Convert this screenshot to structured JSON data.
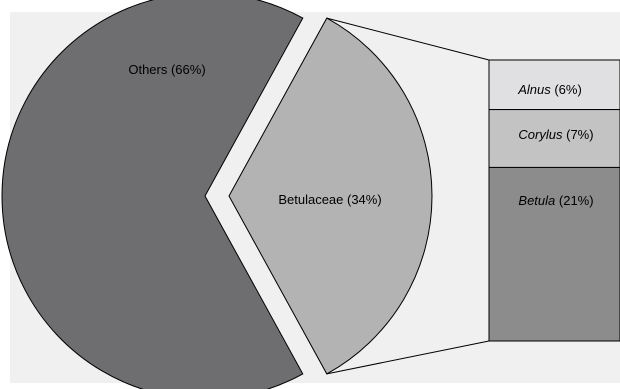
{
  "chart_data": {
    "type": "pie",
    "title": "",
    "pie": {
      "slices": [
        {
          "label": "Others (66%)",
          "value": 66,
          "color": "#6e6e71"
        },
        {
          "label": "Betulaceae (34%)",
          "value": 34,
          "color": "#b3b3b3",
          "exploded": true
        }
      ]
    },
    "breakdown": {
      "parent": "Betulaceae (34%)",
      "segments": [
        {
          "name": "Alnus",
          "pct_text": " (6%)",
          "value": 6,
          "color": "#e0e0e2"
        },
        {
          "name": "Corylus",
          "pct_text": " (7%)",
          "value": 7,
          "color": "#c3c3c3"
        },
        {
          "name": "Betula",
          "pct_text": " (21%)",
          "value": 21,
          "color": "#8c8c8c"
        }
      ]
    },
    "plot_background": "#f0f0f0"
  }
}
